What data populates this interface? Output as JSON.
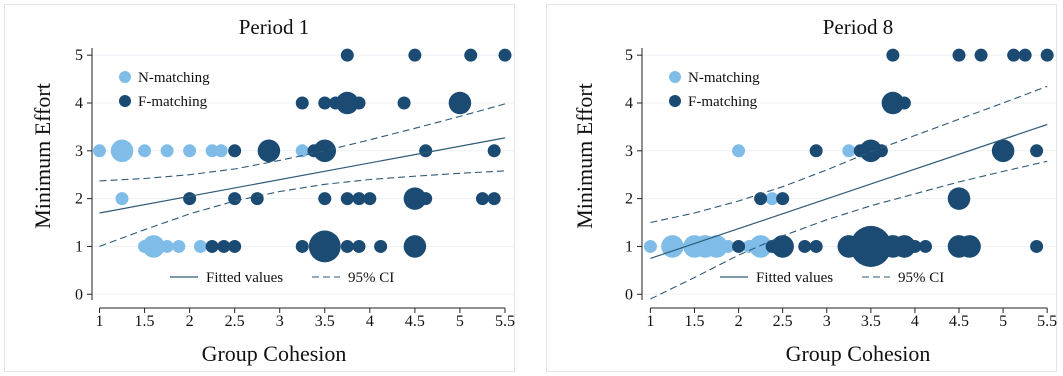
{
  "colors": {
    "n_matching": "#7fbde8",
    "f_matching": "#1b4a72",
    "fit_line": "#2e5a78",
    "grid": "#eef2f6"
  },
  "chart_data": [
    {
      "type": "scatter",
      "title": "Period 1",
      "xlabel": "Group Cohesion",
      "ylabel": "Minimum Effort",
      "xlim": [
        0.95,
        5.6
      ],
      "ylim": [
        -0.12,
        5.15
      ],
      "x_ticks": [
        "1",
        "1.5",
        "2",
        "2.5",
        "3",
        "3.5",
        "4",
        "4.5",
        "5",
        "5.5"
      ],
      "y_ticks": [
        "0",
        "1",
        "2",
        "3",
        "4",
        "5"
      ],
      "grid": "horizontal",
      "legend": {
        "position": "top-left",
        "entries": [
          "N-matching",
          "F-matching"
        ]
      },
      "fit_legend": {
        "position": "bottom",
        "entries": [
          "Fitted values",
          "95% CI"
        ]
      },
      "series": [
        {
          "name": "N-matching",
          "points": [
            {
              "x": 1.0,
              "y": 3,
              "size": 1
            },
            {
              "x": 1.25,
              "y": 3,
              "size": 3
            },
            {
              "x": 1.5,
              "y": 3,
              "size": 1
            },
            {
              "x": 1.75,
              "y": 3,
              "size": 1
            },
            {
              "x": 2.0,
              "y": 3,
              "size": 1
            },
            {
              "x": 2.25,
              "y": 3,
              "size": 1
            },
            {
              "x": 2.35,
              "y": 3,
              "size": 1
            },
            {
              "x": 1.25,
              "y": 2,
              "size": 1
            },
            {
              "x": 1.5,
              "y": 1,
              "size": 1
            },
            {
              "x": 1.6,
              "y": 1,
              "size": 3
            },
            {
              "x": 1.75,
              "y": 1,
              "size": 1
            },
            {
              "x": 1.88,
              "y": 1,
              "size": 1
            },
            {
              "x": 2.12,
              "y": 1,
              "size": 1
            },
            {
              "x": 3.25,
              "y": 3,
              "size": 1
            }
          ]
        },
        {
          "name": "F-matching",
          "points": [
            {
              "x": 3.75,
              "y": 5,
              "size": 1
            },
            {
              "x": 4.5,
              "y": 5,
              "size": 1
            },
            {
              "x": 5.12,
              "y": 5,
              "size": 1
            },
            {
              "x": 5.5,
              "y": 5,
              "size": 1
            },
            {
              "x": 3.25,
              "y": 4,
              "size": 1
            },
            {
              "x": 3.5,
              "y": 4,
              "size": 1
            },
            {
              "x": 3.62,
              "y": 4,
              "size": 1
            },
            {
              "x": 3.75,
              "y": 4,
              "size": 3
            },
            {
              "x": 3.88,
              "y": 4,
              "size": 1
            },
            {
              "x": 4.38,
              "y": 4,
              "size": 1
            },
            {
              "x": 5.0,
              "y": 4,
              "size": 3
            },
            {
              "x": 2.5,
              "y": 3,
              "size": 1
            },
            {
              "x": 2.88,
              "y": 3,
              "size": 3
            },
            {
              "x": 3.38,
              "y": 3,
              "size": 1
            },
            {
              "x": 3.5,
              "y": 3,
              "size": 3
            },
            {
              "x": 4.62,
              "y": 3,
              "size": 1
            },
            {
              "x": 5.38,
              "y": 3,
              "size": 1
            },
            {
              "x": 2.0,
              "y": 2,
              "size": 1
            },
            {
              "x": 2.5,
              "y": 2,
              "size": 1
            },
            {
              "x": 2.75,
              "y": 2,
              "size": 1
            },
            {
              "x": 3.5,
              "y": 2,
              "size": 1
            },
            {
              "x": 3.75,
              "y": 2,
              "size": 1
            },
            {
              "x": 3.88,
              "y": 2,
              "size": 1
            },
            {
              "x": 4.0,
              "y": 2,
              "size": 1
            },
            {
              "x": 4.5,
              "y": 2,
              "size": 3
            },
            {
              "x": 4.62,
              "y": 2,
              "size": 1
            },
            {
              "x": 5.25,
              "y": 2,
              "size": 1
            },
            {
              "x": 5.38,
              "y": 2,
              "size": 1
            },
            {
              "x": 2.25,
              "y": 1,
              "size": 1
            },
            {
              "x": 2.38,
              "y": 1,
              "size": 1
            },
            {
              "x": 2.5,
              "y": 1,
              "size": 1
            },
            {
              "x": 3.25,
              "y": 1,
              "size": 1
            },
            {
              "x": 3.5,
              "y": 1,
              "size": 6
            },
            {
              "x": 3.75,
              "y": 1,
              "size": 1
            },
            {
              "x": 3.88,
              "y": 1,
              "size": 1
            },
            {
              "x": 4.12,
              "y": 1,
              "size": 1
            },
            {
              "x": 4.5,
              "y": 1,
              "size": 3
            }
          ]
        }
      ],
      "fitted_line": {
        "x": [
          1.0,
          5.5
        ],
        "y": [
          1.7,
          3.27
        ]
      },
      "ci_upper": {
        "x": [
          1.0,
          1.5,
          2.0,
          2.5,
          3.0,
          3.5,
          4.0,
          4.5,
          5.0,
          5.5
        ],
        "y": [
          2.37,
          2.42,
          2.5,
          2.62,
          2.8,
          3.0,
          3.23,
          3.47,
          3.72,
          3.98
        ]
      },
      "ci_lower": {
        "x": [
          1.0,
          1.5,
          2.0,
          2.5,
          3.0,
          3.5,
          4.0,
          4.5,
          5.0,
          5.5
        ],
        "y": [
          1.0,
          1.35,
          1.68,
          1.95,
          2.15,
          2.3,
          2.4,
          2.47,
          2.53,
          2.58
        ]
      }
    },
    {
      "type": "scatter",
      "title": "Period 8",
      "xlabel": "Group Cohesion",
      "ylabel": "Minimum Effort",
      "xlim": [
        0.95,
        5.6
      ],
      "ylim": [
        -0.12,
        5.15
      ],
      "x_ticks": [
        "1",
        "1.5",
        "2",
        "2.5",
        "3",
        "3.5",
        "4",
        "4.5",
        "5",
        "5.5"
      ],
      "y_ticks": [
        "0",
        "1",
        "2",
        "3",
        "4",
        "5"
      ],
      "grid": "horizontal",
      "legend": {
        "position": "top-left",
        "entries": [
          "N-matching",
          "F-matching"
        ]
      },
      "fit_legend": {
        "position": "bottom",
        "entries": [
          "Fitted values",
          "95% CI"
        ]
      },
      "series": [
        {
          "name": "N-matching",
          "points": [
            {
              "x": 1.0,
              "y": 1,
              "size": 1
            },
            {
              "x": 1.25,
              "y": 1,
              "size": 3
            },
            {
              "x": 1.5,
              "y": 1,
              "size": 3
            },
            {
              "x": 1.62,
              "y": 1,
              "size": 3
            },
            {
              "x": 1.75,
              "y": 1,
              "size": 3
            },
            {
              "x": 1.88,
              "y": 1,
              "size": 1
            },
            {
              "x": 2.12,
              "y": 1,
              "size": 1
            },
            {
              "x": 2.25,
              "y": 1,
              "size": 3
            },
            {
              "x": 2.0,
              "y": 3,
              "size": 1
            },
            {
              "x": 2.38,
              "y": 2,
              "size": 1
            },
            {
              "x": 3.25,
              "y": 3,
              "size": 1
            }
          ]
        },
        {
          "name": "F-matching",
          "points": [
            {
              "x": 3.75,
              "y": 5,
              "size": 1
            },
            {
              "x": 4.5,
              "y": 5,
              "size": 1
            },
            {
              "x": 4.75,
              "y": 5,
              "size": 1
            },
            {
              "x": 5.12,
              "y": 5,
              "size": 1
            },
            {
              "x": 5.25,
              "y": 5,
              "size": 1
            },
            {
              "x": 5.5,
              "y": 5,
              "size": 1
            },
            {
              "x": 3.75,
              "y": 4,
              "size": 3
            },
            {
              "x": 3.88,
              "y": 4,
              "size": 1
            },
            {
              "x": 2.88,
              "y": 3,
              "size": 1
            },
            {
              "x": 3.38,
              "y": 3,
              "size": 1
            },
            {
              "x": 3.5,
              "y": 3,
              "size": 3
            },
            {
              "x": 3.62,
              "y": 3,
              "size": 1
            },
            {
              "x": 5.0,
              "y": 3,
              "size": 3
            },
            {
              "x": 5.38,
              "y": 3,
              "size": 1
            },
            {
              "x": 2.25,
              "y": 2,
              "size": 1
            },
            {
              "x": 2.5,
              "y": 2,
              "size": 1
            },
            {
              "x": 4.5,
              "y": 2,
              "size": 3
            },
            {
              "x": 2.0,
              "y": 1,
              "size": 1
            },
            {
              "x": 2.38,
              "y": 1,
              "size": 1
            },
            {
              "x": 2.5,
              "y": 1,
              "size": 3
            },
            {
              "x": 2.75,
              "y": 1,
              "size": 1
            },
            {
              "x": 2.88,
              "y": 1,
              "size": 1
            },
            {
              "x": 3.25,
              "y": 1,
              "size": 3
            },
            {
              "x": 3.5,
              "y": 1,
              "size": 10
            },
            {
              "x": 3.75,
              "y": 1,
              "size": 3
            },
            {
              "x": 3.88,
              "y": 1,
              "size": 3
            },
            {
              "x": 4.0,
              "y": 1,
              "size": 1
            },
            {
              "x": 4.12,
              "y": 1,
              "size": 1
            },
            {
              "x": 4.5,
              "y": 1,
              "size": 3
            },
            {
              "x": 4.62,
              "y": 1,
              "size": 3
            },
            {
              "x": 5.38,
              "y": 1,
              "size": 1
            }
          ]
        }
      ],
      "fitted_line": {
        "x": [
          1.0,
          5.5
        ],
        "y": [
          0.75,
          3.55
        ]
      },
      "ci_upper": {
        "x": [
          1.0,
          1.5,
          2.0,
          2.5,
          3.0,
          3.5,
          4.0,
          4.5,
          5.0,
          5.5
        ],
        "y": [
          1.5,
          1.7,
          1.95,
          2.25,
          2.6,
          2.98,
          3.32,
          3.66,
          4.0,
          4.35
        ]
      },
      "ci_lower": {
        "x": [
          1.0,
          1.5,
          2.0,
          2.5,
          3.0,
          3.5,
          4.0,
          4.5,
          5.0,
          5.5
        ],
        "y": [
          -0.1,
          0.35,
          0.82,
          1.22,
          1.56,
          1.85,
          2.1,
          2.35,
          2.57,
          2.78
        ]
      }
    }
  ]
}
